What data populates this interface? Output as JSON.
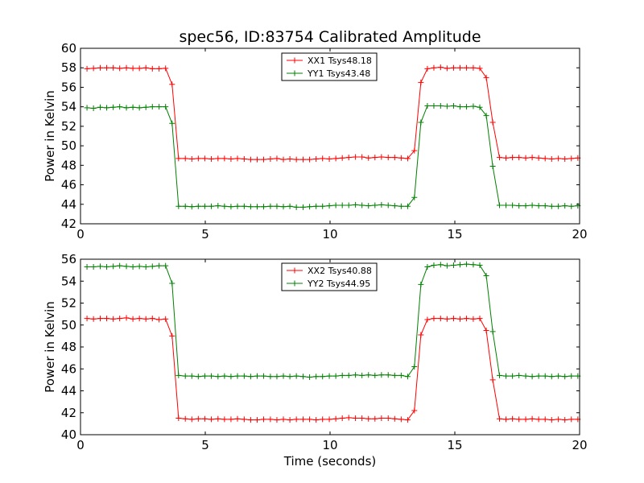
{
  "figure": {
    "title": "spec56, ID:83754 Calibrated Amplitude"
  },
  "chart_data": [
    {
      "type": "line",
      "title": "spec56, ID:83754 Calibrated Amplitude",
      "xlabel": "",
      "ylabel": "Power in Kelvin",
      "xlim": [
        0,
        20
      ],
      "ylim": [
        42,
        60
      ],
      "xticks": [
        0,
        5,
        10,
        15,
        20
      ],
      "yticks": [
        42,
        44,
        46,
        48,
        50,
        52,
        54,
        56,
        58,
        60
      ],
      "grid": false,
      "legend_placement": "upper center",
      "x": [
        0.26,
        0.52,
        0.79,
        1.05,
        1.31,
        1.57,
        1.84,
        2.1,
        2.36,
        2.62,
        2.88,
        3.15,
        3.41,
        3.67,
        3.93,
        4.2,
        4.46,
        4.72,
        4.98,
        5.24,
        5.51,
        5.77,
        6.03,
        6.29,
        6.56,
        6.82,
        7.08,
        7.34,
        7.61,
        7.87,
        8.13,
        8.39,
        8.65,
        8.92,
        9.18,
        9.44,
        9.7,
        9.97,
        10.23,
        10.49,
        10.75,
        11.02,
        11.28,
        11.54,
        11.8,
        12.06,
        12.33,
        12.59,
        12.85,
        13.11,
        13.38,
        13.64,
        13.9,
        14.16,
        14.43,
        14.69,
        14.95,
        15.21,
        15.47,
        15.74,
        16.0,
        16.26,
        16.52,
        16.79,
        17.05,
        17.31,
        17.57,
        17.84,
        18.1,
        18.36,
        18.62,
        18.88,
        19.15,
        19.41,
        19.67,
        19.93
      ],
      "series": [
        {
          "name": "XX1 Tsys48.18",
          "color": "#ff0000",
          "values": [
            57.9,
            57.95,
            58.0,
            58.0,
            58.0,
            57.95,
            58.0,
            57.95,
            57.95,
            58.0,
            57.9,
            57.9,
            57.95,
            56.3,
            48.7,
            48.7,
            48.65,
            48.7,
            48.7,
            48.65,
            48.7,
            48.7,
            48.65,
            48.7,
            48.65,
            48.6,
            48.6,
            48.6,
            48.65,
            48.7,
            48.6,
            48.65,
            48.6,
            48.6,
            48.6,
            48.65,
            48.7,
            48.65,
            48.7,
            48.75,
            48.8,
            48.85,
            48.85,
            48.75,
            48.8,
            48.85,
            48.8,
            48.8,
            48.75,
            48.7,
            49.5,
            56.5,
            57.9,
            58.0,
            58.05,
            57.95,
            58.0,
            58.0,
            58.0,
            58.0,
            57.95,
            57.0,
            52.4,
            48.8,
            48.75,
            48.8,
            48.8,
            48.75,
            48.8,
            48.75,
            48.7,
            48.65,
            48.7,
            48.65,
            48.7,
            48.75
          ]
        },
        {
          "name": "YY1 Tsys43.48",
          "color": "#008000",
          "values": [
            53.9,
            53.85,
            53.95,
            53.9,
            53.95,
            54.0,
            53.9,
            53.95,
            53.9,
            53.95,
            54.0,
            54.0,
            54.0,
            52.3,
            43.8,
            43.8,
            43.75,
            43.8,
            43.8,
            43.8,
            43.85,
            43.8,
            43.75,
            43.8,
            43.8,
            43.75,
            43.75,
            43.75,
            43.8,
            43.8,
            43.75,
            43.8,
            43.7,
            43.7,
            43.75,
            43.8,
            43.8,
            43.85,
            43.9,
            43.9,
            43.9,
            43.95,
            43.9,
            43.85,
            43.9,
            43.95,
            43.9,
            43.85,
            43.8,
            43.8,
            44.7,
            52.4,
            54.1,
            54.1,
            54.1,
            54.05,
            54.1,
            54.0,
            54.0,
            54.05,
            53.95,
            53.1,
            47.9,
            43.9,
            43.9,
            43.9,
            43.85,
            43.85,
            43.9,
            43.85,
            43.85,
            43.8,
            43.8,
            43.85,
            43.8,
            43.85
          ]
        }
      ]
    },
    {
      "type": "line",
      "title": "",
      "xlabel": "Time (seconds)",
      "ylabel": "Power in Kelvin",
      "xlim": [
        0,
        20
      ],
      "ylim": [
        40,
        56
      ],
      "xticks": [
        0,
        5,
        10,
        15,
        20
      ],
      "yticks": [
        40,
        42,
        44,
        46,
        48,
        50,
        52,
        54,
        56
      ],
      "grid": false,
      "legend_placement": "upper center",
      "x": [
        0.26,
        0.52,
        0.79,
        1.05,
        1.31,
        1.57,
        1.84,
        2.1,
        2.36,
        2.62,
        2.88,
        3.15,
        3.41,
        3.67,
        3.93,
        4.2,
        4.46,
        4.72,
        4.98,
        5.24,
        5.51,
        5.77,
        6.03,
        6.29,
        6.56,
        6.82,
        7.08,
        7.34,
        7.61,
        7.87,
        8.13,
        8.39,
        8.65,
        8.92,
        9.18,
        9.44,
        9.7,
        9.97,
        10.23,
        10.49,
        10.75,
        11.02,
        11.28,
        11.54,
        11.8,
        12.06,
        12.33,
        12.59,
        12.85,
        13.11,
        13.38,
        13.64,
        13.9,
        14.16,
        14.43,
        14.69,
        14.95,
        15.21,
        15.47,
        15.74,
        16.0,
        16.26,
        16.52,
        16.79,
        17.05,
        17.31,
        17.57,
        17.84,
        18.1,
        18.36,
        18.62,
        18.88,
        19.15,
        19.41,
        19.67,
        19.93
      ],
      "series": [
        {
          "name": "XX2 Tsys40.88",
          "color": "#ff0000",
          "values": [
            50.6,
            50.55,
            50.6,
            50.6,
            50.55,
            50.6,
            50.65,
            50.55,
            50.6,
            50.55,
            50.6,
            50.5,
            50.55,
            49.0,
            41.5,
            41.45,
            41.4,
            41.45,
            41.45,
            41.4,
            41.45,
            41.4,
            41.4,
            41.45,
            41.4,
            41.35,
            41.35,
            41.4,
            41.4,
            41.35,
            41.4,
            41.35,
            41.4,
            41.4,
            41.4,
            41.35,
            41.4,
            41.4,
            41.45,
            41.5,
            41.55,
            41.5,
            41.5,
            41.45,
            41.45,
            41.5,
            41.5,
            41.45,
            41.4,
            41.35,
            42.2,
            49.1,
            50.5,
            50.6,
            50.6,
            50.55,
            50.6,
            50.55,
            50.6,
            50.55,
            50.6,
            49.5,
            45.0,
            41.45,
            41.4,
            41.45,
            41.4,
            41.4,
            41.45,
            41.4,
            41.4,
            41.35,
            41.4,
            41.35,
            41.4,
            41.4
          ]
        },
        {
          "name": "YY2 Tsys44.95",
          "color": "#008000",
          "values": [
            55.3,
            55.3,
            55.35,
            55.3,
            55.35,
            55.4,
            55.35,
            55.3,
            55.35,
            55.3,
            55.35,
            55.4,
            55.4,
            53.8,
            45.4,
            45.35,
            45.35,
            45.3,
            45.35,
            45.35,
            45.3,
            45.35,
            45.3,
            45.35,
            45.35,
            45.3,
            45.35,
            45.35,
            45.3,
            45.3,
            45.35,
            45.3,
            45.35,
            45.3,
            45.25,
            45.3,
            45.3,
            45.35,
            45.35,
            45.4,
            45.4,
            45.45,
            45.4,
            45.45,
            45.4,
            45.45,
            45.45,
            45.4,
            45.4,
            45.3,
            46.2,
            53.7,
            55.3,
            55.45,
            55.5,
            55.4,
            55.45,
            55.5,
            55.55,
            55.5,
            55.45,
            54.5,
            49.4,
            45.4,
            45.35,
            45.35,
            45.4,
            45.35,
            45.3,
            45.35,
            45.35,
            45.3,
            45.35,
            45.3,
            45.35,
            45.35
          ]
        }
      ]
    }
  ]
}
